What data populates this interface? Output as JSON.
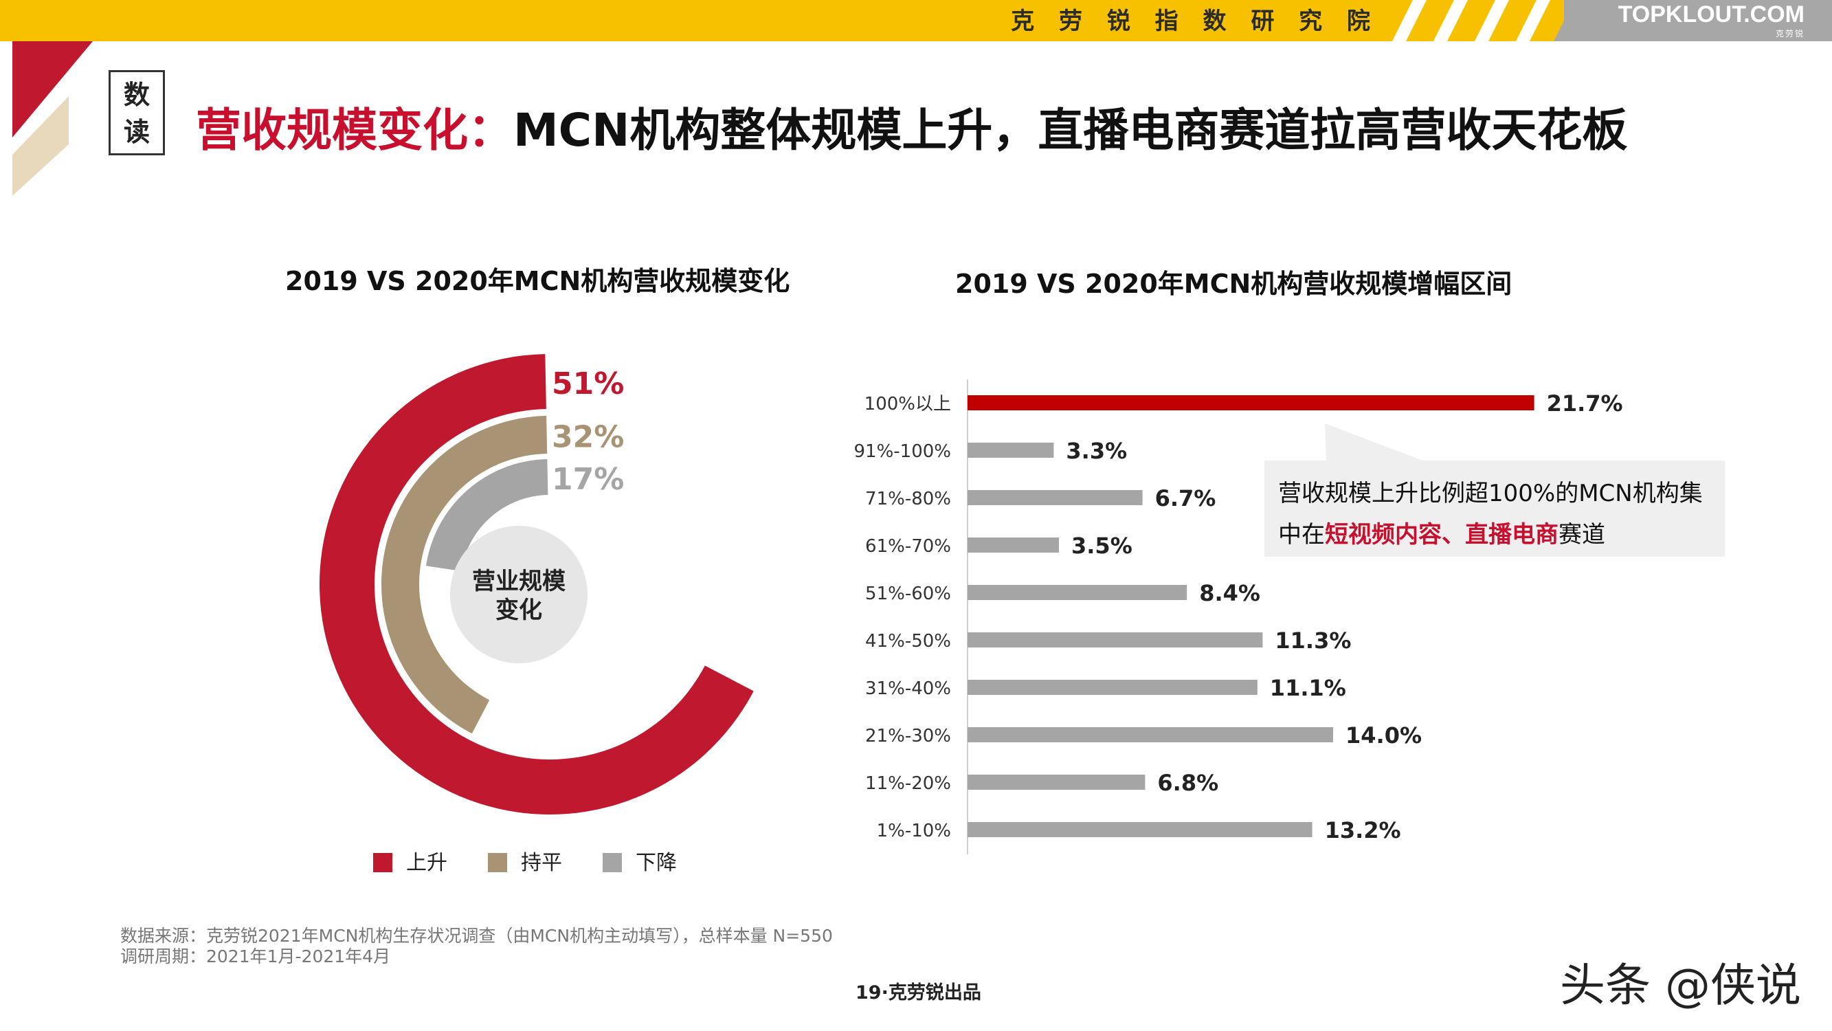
{
  "header": {
    "org_name": "克 劳 锐 指 数 研 究 院",
    "brand": "TOPKLOUT.COM",
    "brand_sub": "克劳锐"
  },
  "tag": {
    "line1": "数",
    "line2": "读"
  },
  "title": {
    "highlight": "营收规模变化：",
    "rest": "MCN机构整体规模上升，直播电商赛道拉高营收天花板"
  },
  "colors": {
    "up": "#C0182F",
    "flat": "#A89474",
    "down": "#A5A5A5",
    "accent": "#F7C100",
    "bar_highlight": "#C00000",
    "bar": "#A5A5A5"
  },
  "chart_data": [
    {
      "type": "pie",
      "style": "radial-bar",
      "title": "2019 VS 2020年MCN机构营收规模变化",
      "center_label": [
        "营业规模",
        "变化"
      ],
      "slices": [
        {
          "name": "上升",
          "value": 51,
          "label": "51%"
        },
        {
          "name": "持平",
          "value": 32,
          "label": "32%"
        },
        {
          "name": "下降",
          "value": 17,
          "label": "17%"
        }
      ],
      "legend_position": "bottom"
    },
    {
      "type": "bar",
      "orientation": "horizontal",
      "title": "2019 VS 2020年MCN机构营收规模增幅区间",
      "categories": [
        "100%以上",
        "91%-100%",
        "71%-80%",
        "61%-70%",
        "51%-60%",
        "41%-50%",
        "31%-40%",
        "21%-30%",
        "11%-20%",
        "1%-10%"
      ],
      "values": [
        21.7,
        3.3,
        6.7,
        3.5,
        8.4,
        11.3,
        11.1,
        14.0,
        6.8,
        13.2
      ],
      "labels": [
        "21.7%",
        "3.3%",
        "6.7%",
        "3.5%",
        "8.4%",
        "11.3%",
        "11.1%",
        "14.0%",
        "6.8%",
        "13.2%"
      ],
      "unit": "%",
      "highlight_index": 0
    }
  ],
  "callout": {
    "line1": "营收规模上升比例超100%的MCN机构集",
    "line2_pre": "中在",
    "line2_hl": "短视频内容、直播电商",
    "line2_post": "赛道"
  },
  "footnotes": {
    "source": "数据来源：克劳锐2021年MCN机构生存状况调查（由MCN机构主动填写），总样本量 N=550",
    "period": "调研周期：2021年1月-2021年4月"
  },
  "page_number": "19·克劳锐出品",
  "credit": "头条 @侠说"
}
